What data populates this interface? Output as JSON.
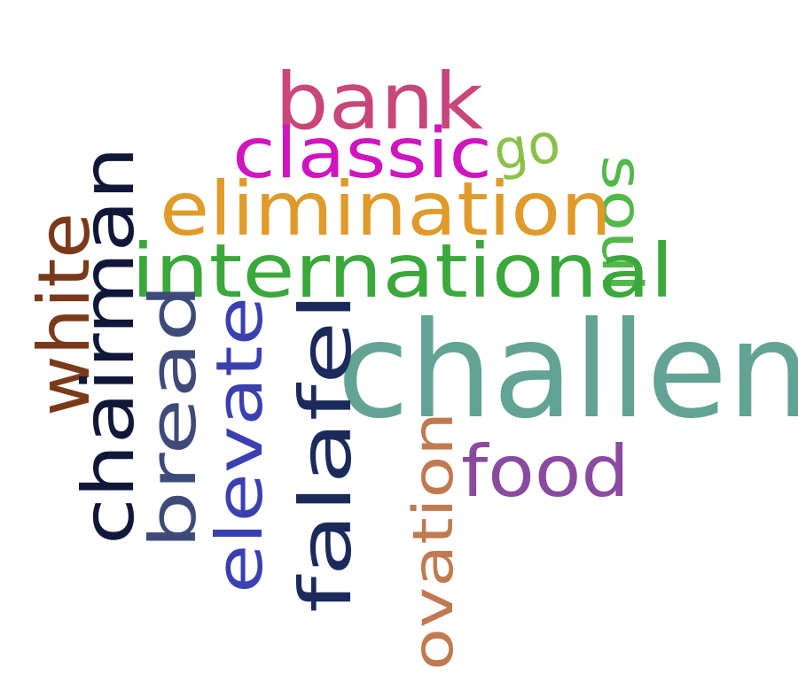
{
  "words": [
    {
      "text": "bank",
      "color": "#c8467a"
    },
    {
      "text": "classic",
      "color": "#d015c0"
    },
    {
      "text": "go",
      "color": "#8cc04a"
    },
    {
      "text": "soul",
      "color": "#52b84a"
    },
    {
      "text": "elimination",
      "color": "#e09a2a"
    },
    {
      "text": "international",
      "color": "#3aa83a"
    },
    {
      "text": "challenge",
      "color": "#62a393"
    },
    {
      "text": "white",
      "color": "#7a3a1a"
    },
    {
      "text": "chairman",
      "color": "#10183a"
    },
    {
      "text": "bread",
      "color": "#3e4a78"
    },
    {
      "text": "elevate",
      "color": "#3a40b0"
    },
    {
      "text": "falafel",
      "color": "#1a2a5a"
    },
    {
      "text": "ovation",
      "color": "#c07a50"
    },
    {
      "text": "food",
      "color": "#8a4aa0"
    }
  ]
}
